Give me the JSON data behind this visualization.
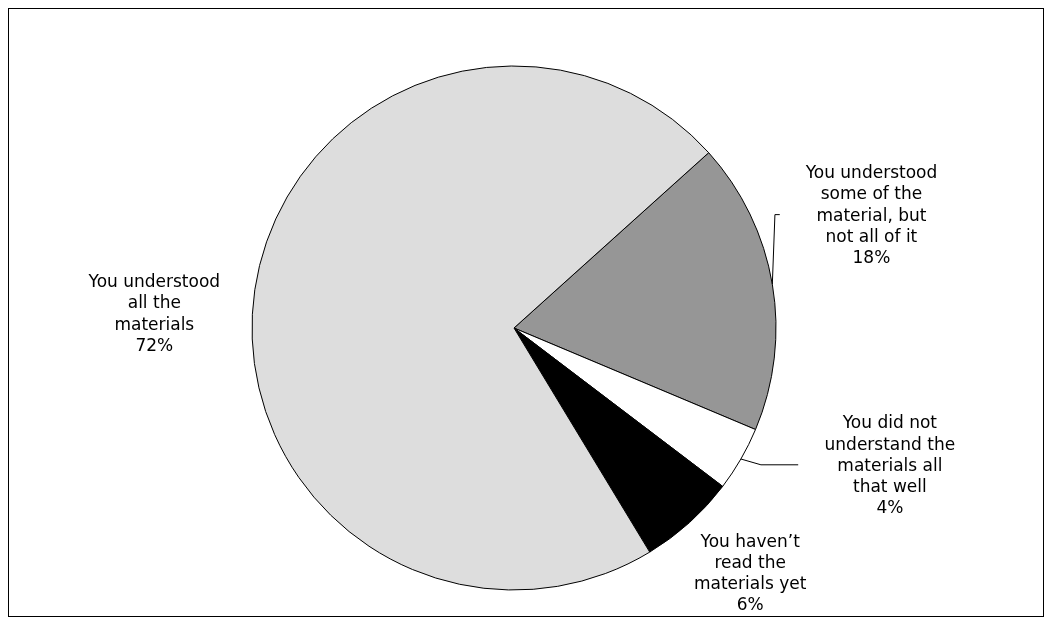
{
  "chart_data": {
    "type": "pie",
    "categories": [
      "You understood some of the material, but not all of it",
      "You did not understand the materials all that well",
      "You haven’t read the materials yet",
      "You understood all the materials"
    ],
    "values": [
      18,
      4,
      6,
      72
    ],
    "value_labels": [
      "18%",
      "4%",
      "6%",
      "72%"
    ],
    "colors": [
      "#969696",
      "#ffffff",
      "#000000",
      "#dddddd"
    ],
    "legend": false
  }
}
